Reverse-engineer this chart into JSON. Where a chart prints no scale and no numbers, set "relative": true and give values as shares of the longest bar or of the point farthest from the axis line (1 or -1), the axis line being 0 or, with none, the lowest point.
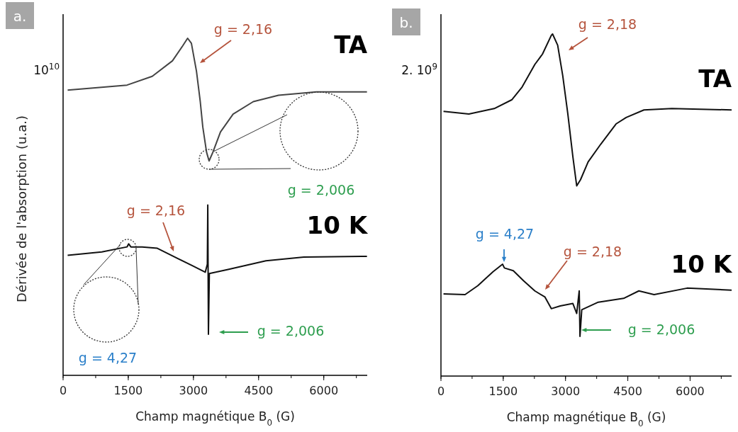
{
  "chart_data": [
    {
      "type": "line",
      "title": "a.",
      "xlabel": "Champ magnétique B$_{0}$ (G)",
      "ylabel": "Dérivée de l'absorption (u.a.)",
      "relative": true,
      "xlim": [
        0,
        7000
      ],
      "xticks": [
        0,
        1500,
        3000,
        4500,
        6000
      ],
      "grid": false,
      "legend": false,
      "annotations": [
        "10$^{10}$",
        "g = 2,16",
        "g = 2,006",
        "g = 2,16",
        "g = 2,006",
        "g = 4,27"
      ],
      "series": [
        {
          "name": "TA",
          "color": "#444444",
          "x": [
            105,
            1471,
            2052,
            2517,
            2750,
            2866,
            2953,
            3070,
            3157,
            3215,
            3302,
            3360,
            3448,
            3622,
            3913,
            4378,
            4959,
            5831,
            6994
          ],
          "values": [
            0.846,
            0.861,
            0.887,
            0.933,
            0.977,
            1.0,
            0.985,
            0.902,
            0.812,
            0.737,
            0.662,
            0.636,
            0.662,
            0.722,
            0.775,
            0.812,
            0.831,
            0.841,
            0.841
          ]
        },
        {
          "name": "10 K",
          "color": "#111111",
          "x": [
            105,
            890,
            1471,
            1510,
            1560,
            1820,
            2169,
            2634,
            2983,
            3273,
            3320,
            3330,
            3345,
            3366,
            3797,
            4668,
            5540,
            6994
          ],
          "values": [
            0.356,
            0.366,
            0.381,
            0.39,
            0.381,
            0.381,
            0.377,
            0.347,
            0.325,
            0.306,
            0.33,
            0.505,
            0.122,
            0.302,
            0.314,
            0.34,
            0.351,
            0.353
          ]
        }
      ]
    },
    {
      "type": "line",
      "title": "b.",
      "xlabel": "Champ magnétique B$_{0}$ (G)",
      "relative": true,
      "xlim": [
        0,
        7000
      ],
      "xticks": [
        0,
        1500,
        3000,
        4500,
        6000
      ],
      "grid": false,
      "legend": false,
      "annotations": [
        "2. 10$^{9}$",
        "g = 2,18",
        "g = 4,27",
        "g = 2,18",
        "g = 2,006"
      ],
      "series": [
        {
          "name": "TA",
          "color": "#111111",
          "x": [
            61,
            672,
            1283,
            1711,
            1955,
            2261,
            2444,
            2658,
            2688,
            2811,
            2933,
            3055,
            3177,
            3269,
            3361,
            3544,
            3849,
            4216,
            4461,
            4888,
            5560,
            7000
          ],
          "values": [
            0.774,
            0.766,
            0.782,
            0.808,
            0.845,
            0.911,
            0.941,
            0.996,
            1.0,
            0.967,
            0.878,
            0.767,
            0.641,
            0.556,
            0.574,
            0.626,
            0.678,
            0.737,
            0.756,
            0.778,
            0.782,
            0.778
          ]
        },
        {
          "name": "10 K",
          "color": "#111111",
          "x": [
            61,
            580,
            886,
            1253,
            1485,
            1528,
            1742,
            1986,
            2261,
            2505,
            2658,
            2872,
            3177,
            3269,
            3330,
            3348,
            3391,
            3788,
            4399,
            4766,
            5133,
            5927,
            7000
          ],
          "values": [
            0.24,
            0.238,
            0.264,
            0.305,
            0.327,
            0.316,
            0.308,
            0.279,
            0.249,
            0.231,
            0.197,
            0.205,
            0.212,
            0.183,
            0.249,
            0.116,
            0.194,
            0.216,
            0.227,
            0.249,
            0.238,
            0.257,
            0.251
          ]
        }
      ]
    }
  ]
}
